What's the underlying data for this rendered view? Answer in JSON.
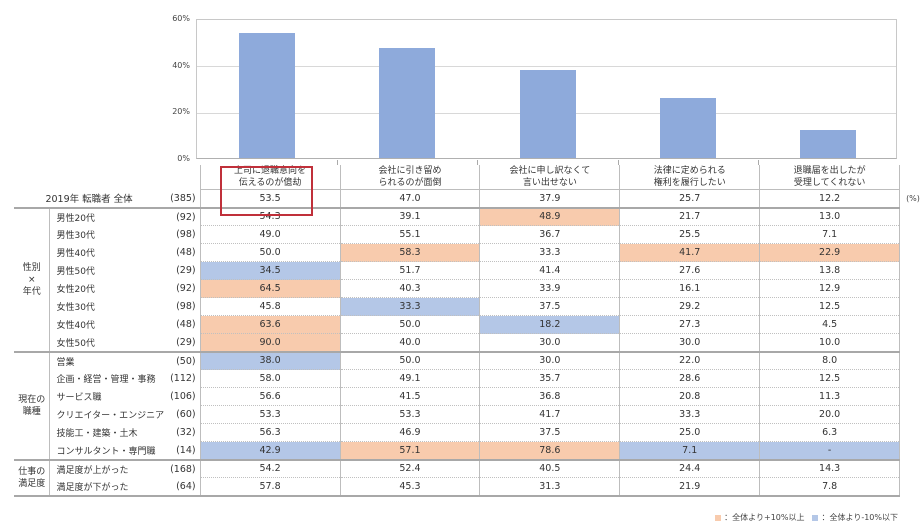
{
  "chart_data": {
    "type": "bar",
    "title": "",
    "xlabel": "",
    "ylabel": "",
    "ylim": [
      0,
      60
    ],
    "yticks": [
      "0%",
      "20%",
      "40%",
      "60%"
    ],
    "grid": true,
    "categories": [
      "上司に退職意向を伝えるのが億劫",
      "会社に引き留められるのが面倒",
      "会社に申し訳なくて言い出せない",
      "法律に定められる権利を履行したい",
      "退職届を出したが受理してくれない"
    ],
    "values": [
      53.5,
      47.0,
      37.9,
      25.7,
      12.2
    ],
    "bar_color": "#8eaadb"
  },
  "table": {
    "columns": [
      {
        "line1": "上司に退職意向を",
        "line2": "伝えるのが億劫"
      },
      {
        "line1": "会社に引き留め",
        "line2": "られるのが面倒"
      },
      {
        "line1": "会社に申し訳なくて",
        "line2": "言い出せない"
      },
      {
        "line1": "法律に定められる",
        "line2": "権利を履行したい"
      },
      {
        "line1": "退職届を出したが",
        "line2": "受理してくれない"
      }
    ],
    "unit": "(%)",
    "total": {
      "label": "2019年 転職者 全体",
      "n": "(385)",
      "values": [
        "53.5",
        "47.0",
        "37.9",
        "25.7",
        "12.2"
      ]
    },
    "groups": [
      {
        "label_lines": [
          "性別",
          "×",
          "年代"
        ],
        "rows": [
          {
            "label": "男性20代",
            "n": "(92)",
            "values": [
              "54.3",
              "39.1",
              "48.9",
              "21.7",
              "13.0"
            ],
            "flags": [
              "",
              "",
              "hi",
              "",
              ""
            ]
          },
          {
            "label": "男性30代",
            "n": "(98)",
            "values": [
              "49.0",
              "55.1",
              "36.7",
              "25.5",
              "7.1"
            ],
            "flags": [
              "",
              "",
              "",
              "",
              ""
            ]
          },
          {
            "label": "男性40代",
            "n": "(48)",
            "values": [
              "50.0",
              "58.3",
              "33.3",
              "41.7",
              "22.9"
            ],
            "flags": [
              "",
              "hi",
              "",
              "hi",
              "hi"
            ]
          },
          {
            "label": "男性50代",
            "n": "(29)",
            "values": [
              "34.5",
              "51.7",
              "41.4",
              "27.6",
              "13.8"
            ],
            "flags": [
              "lo",
              "",
              "",
              "",
              ""
            ]
          },
          {
            "label": "女性20代",
            "n": "(92)",
            "values": [
              "64.5",
              "40.3",
              "33.9",
              "16.1",
              "12.9"
            ],
            "flags": [
              "hi",
              "",
              "",
              "",
              ""
            ]
          },
          {
            "label": "女性30代",
            "n": "(98)",
            "values": [
              "45.8",
              "33.3",
              "37.5",
              "29.2",
              "12.5"
            ],
            "flags": [
              "",
              "lo",
              "",
              "",
              ""
            ]
          },
          {
            "label": "女性40代",
            "n": "(48)",
            "values": [
              "63.6",
              "50.0",
              "18.2",
              "27.3",
              "4.5"
            ],
            "flags": [
              "hi",
              "",
              "lo",
              "",
              ""
            ]
          },
          {
            "label": "女性50代",
            "n": "(29)",
            "values": [
              "90.0",
              "40.0",
              "30.0",
              "30.0",
              "10.0"
            ],
            "flags": [
              "hi",
              "",
              "",
              "",
              ""
            ]
          }
        ]
      },
      {
        "label_lines": [
          "現在の",
          "職種"
        ],
        "rows": [
          {
            "label": "営業",
            "n": "(50)",
            "values": [
              "38.0",
              "50.0",
              "30.0",
              "22.0",
              "8.0"
            ],
            "flags": [
              "lo",
              "",
              "",
              "",
              ""
            ]
          },
          {
            "label": "企画・経営・管理・事務",
            "n": "(112)",
            "values": [
              "58.0",
              "49.1",
              "35.7",
              "28.6",
              "12.5"
            ],
            "flags": [
              "",
              "",
              "",
              "",
              ""
            ]
          },
          {
            "label": "サービス職",
            "n": "(106)",
            "values": [
              "56.6",
              "41.5",
              "36.8",
              "20.8",
              "11.3"
            ],
            "flags": [
              "",
              "",
              "",
              "",
              ""
            ]
          },
          {
            "label": "クリエイター・エンジニア",
            "n": "(60)",
            "values": [
              "53.3",
              "53.3",
              "41.7",
              "33.3",
              "20.0"
            ],
            "flags": [
              "",
              "",
              "",
              "",
              ""
            ]
          },
          {
            "label": "技能工・建築・土木",
            "n": "(32)",
            "values": [
              "56.3",
              "46.9",
              "37.5",
              "25.0",
              "6.3"
            ],
            "flags": [
              "",
              "",
              "",
              "",
              ""
            ]
          },
          {
            "label": "コンサルタント・専門職",
            "n": "(14)",
            "values": [
              "42.9",
              "57.1",
              "78.6",
              "7.1",
              "-"
            ],
            "flags": [
              "lo",
              "hi",
              "hi",
              "lo",
              "lo"
            ]
          }
        ]
      },
      {
        "label_lines": [
          "仕事の",
          "満足度"
        ],
        "rows": [
          {
            "label": "満足度が上がった",
            "n": "(168)",
            "values": [
              "54.2",
              "52.4",
              "40.5",
              "24.4",
              "14.3"
            ],
            "flags": [
              "",
              "",
              "",
              "",
              ""
            ]
          },
          {
            "label": "満足度が下がった",
            "n": "(64)",
            "values": [
              "57.8",
              "45.3",
              "31.3",
              "21.9",
              "7.8"
            ],
            "flags": [
              "",
              "",
              "",
              "",
              ""
            ]
          }
        ]
      }
    ]
  },
  "legend": {
    "high": {
      "text": "：全体より+10%以上",
      "color": "#f8cbad"
    },
    "low": {
      "text": "：全体より-10%以下",
      "color": "#b4c7e7"
    }
  },
  "highlight_box_color": "#c0303a"
}
